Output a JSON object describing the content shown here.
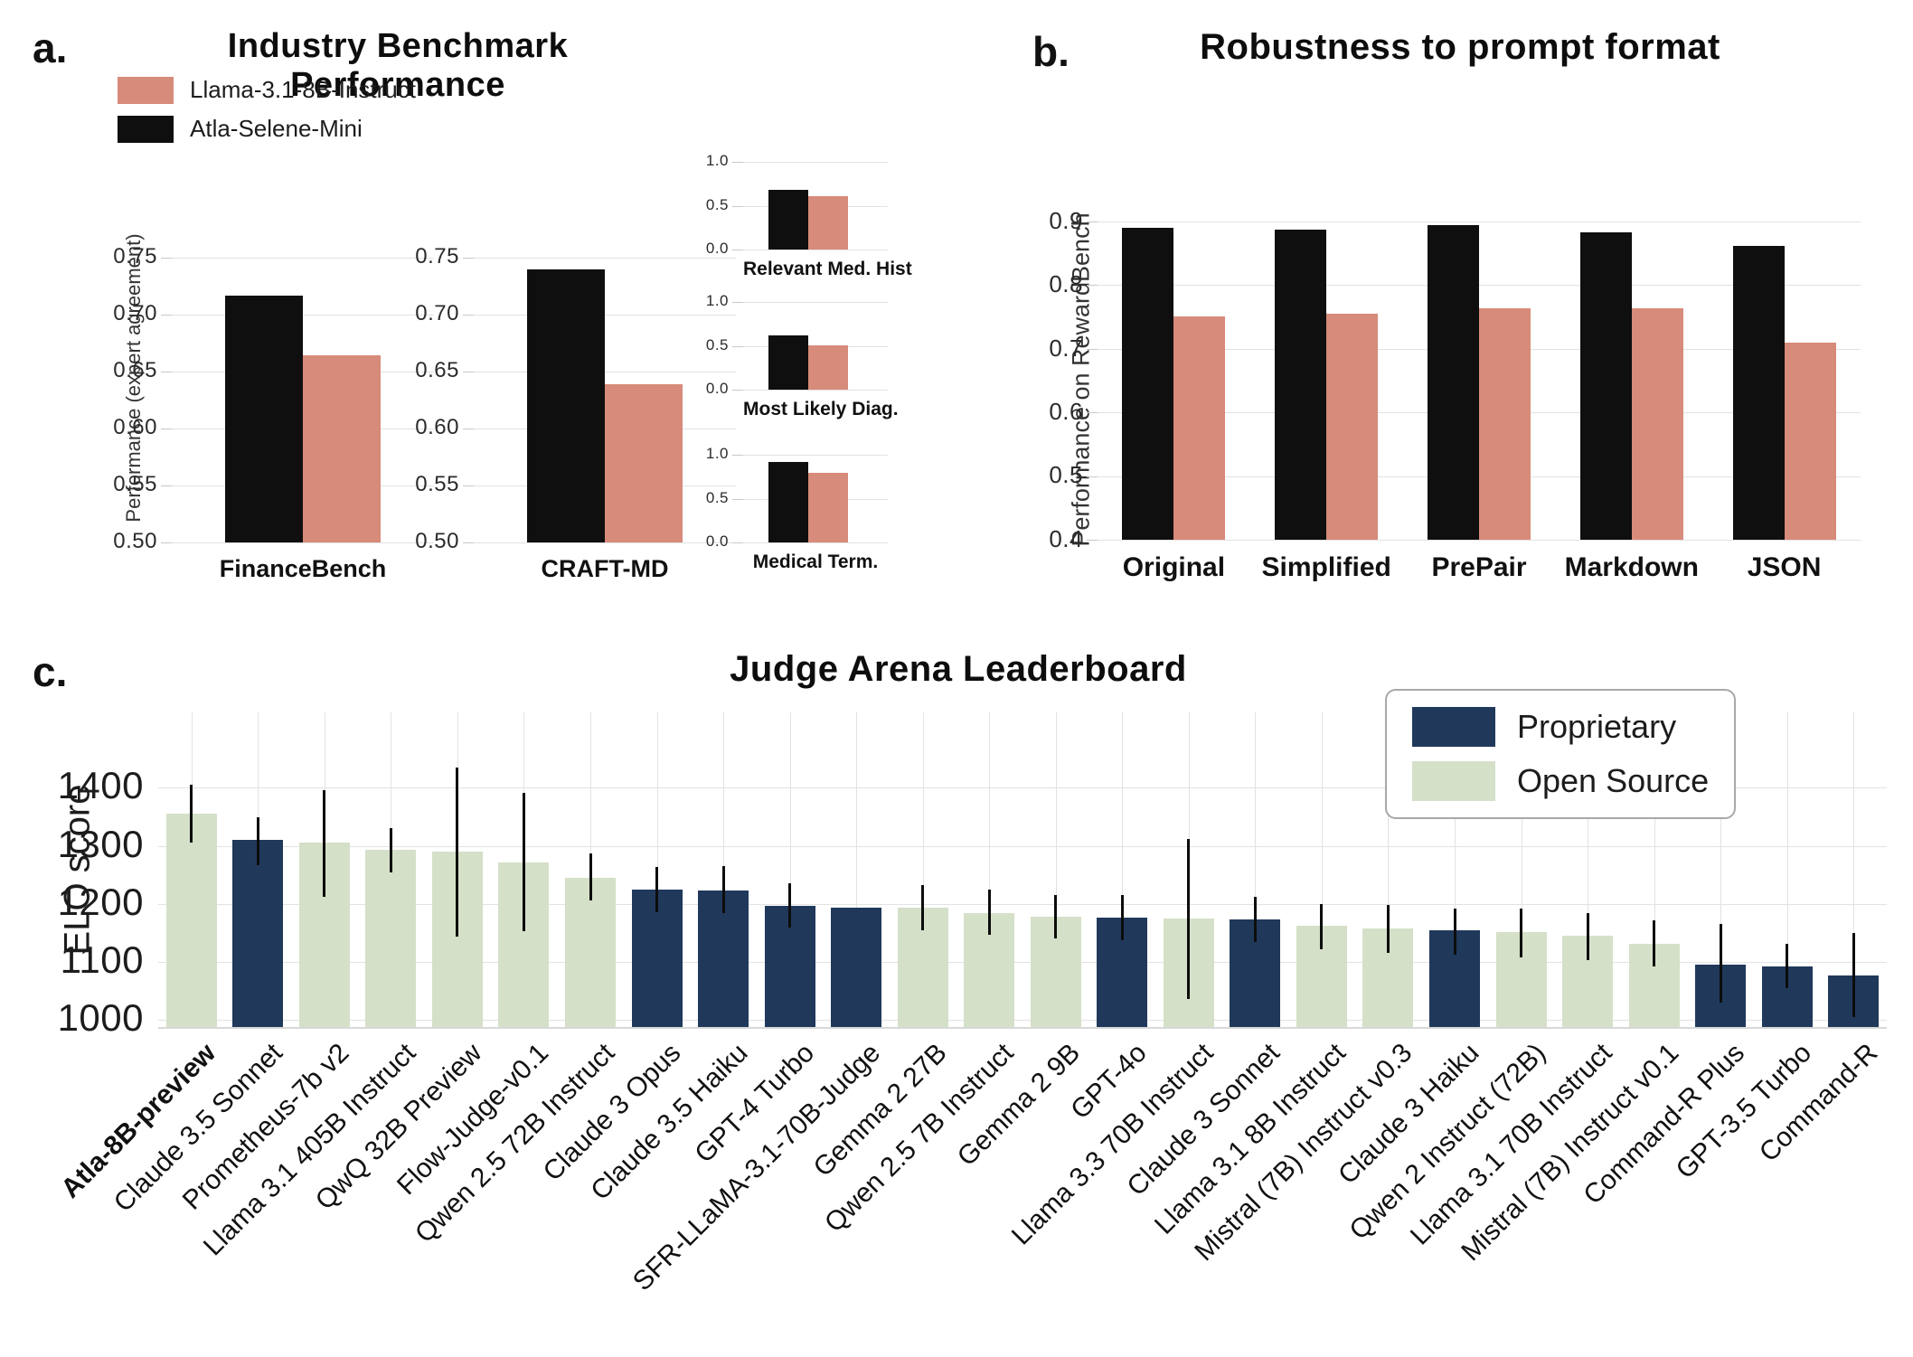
{
  "colors": {
    "black": "#0f0f0f",
    "salmon": "#d78b7a",
    "navy": "#20395b",
    "green": "#d5e0c8",
    "grid": "#e2e2e2",
    "tick": "#c9c9c9",
    "spine": "#d8d8d8"
  },
  "panel_a": {
    "label": "a.",
    "title": "Industry Benchmark Performance",
    "ylabel": "Performance (expert agreement)",
    "legend": [
      {
        "label": "Llama-3.1-8B-Instruct",
        "color": "salmon"
      },
      {
        "label": "Atla-Selene-Mini",
        "color": "black"
      }
    ]
  },
  "panel_b": {
    "label": "b.",
    "title": "Robustness to prompt format",
    "ylabel": "Performance on RewardBench"
  },
  "panel_c": {
    "label": "c.",
    "title": "Judge Arena Leaderboard",
    "ylabel": "ELO score",
    "legend": [
      {
        "label": "Proprietary",
        "color": "navy"
      },
      {
        "label": "Open Source",
        "color": "green"
      }
    ]
  },
  "chart_data": [
    {
      "id": "financebench",
      "type": "bar",
      "xlabel": "FinanceBench",
      "ylabel": "Performance (expert agreement)",
      "ylim": [
        0.5,
        0.75
      ],
      "grid": true,
      "yticks": [
        {
          "v": 0.75,
          "label": "0.75"
        },
        {
          "v": 0.7,
          "label": "0.70"
        },
        {
          "v": 0.65,
          "label": "0.65"
        },
        {
          "v": 0.6,
          "label": "0.60"
        },
        {
          "v": 0.55,
          "label": "0.55"
        },
        {
          "v": 0.5,
          "label": "0.50"
        }
      ],
      "series": [
        {
          "name": "Atla-Selene-Mini",
          "color": "black",
          "value": 0.717
        },
        {
          "name": "Llama-3.1-8B-Instruct",
          "color": "salmon",
          "value": 0.664
        }
      ]
    },
    {
      "id": "craft-md",
      "type": "bar",
      "xlabel": "CRAFT-MD",
      "ylim": [
        0.5,
        0.75
      ],
      "grid": true,
      "yticks": [
        {
          "v": 0.75,
          "label": "0.75"
        },
        {
          "v": 0.7,
          "label": "0.70"
        },
        {
          "v": 0.65,
          "label": "0.65"
        },
        {
          "v": 0.6,
          "label": "0.60"
        },
        {
          "v": 0.55,
          "label": "0.55"
        },
        {
          "v": 0.5,
          "label": "0.50"
        }
      ],
      "series": [
        {
          "name": "Atla-Selene-Mini",
          "color": "black",
          "value": 0.74
        },
        {
          "name": "Llama-3.1-8B-Instruct",
          "color": "salmon",
          "value": 0.639
        }
      ]
    },
    {
      "id": "relevant-med-hist",
      "type": "bar",
      "xlabel": "Relevant Med. Hist",
      "ylim": [
        0.0,
        1.0
      ],
      "grid": true,
      "yticks": [
        {
          "v": 1.0,
          "label": "1.0"
        },
        {
          "v": 0.5,
          "label": "0.5"
        },
        {
          "v": 0.0,
          "label": "0.0"
        }
      ],
      "series": [
        {
          "name": "Atla-Selene-Mini",
          "color": "black",
          "value": 0.68
        },
        {
          "name": "Llama-3.1-8B-Instruct",
          "color": "salmon",
          "value": 0.61
        }
      ]
    },
    {
      "id": "most-likely-diag",
      "type": "bar",
      "xlabel": "Most Likely Diag.",
      "ylim": [
        0.0,
        1.0
      ],
      "grid": true,
      "yticks": [
        {
          "v": 1.0,
          "label": "1.0"
        },
        {
          "v": 0.5,
          "label": "0.5"
        },
        {
          "v": 0.0,
          "label": "0.0"
        }
      ],
      "series": [
        {
          "name": "Atla-Selene-Mini",
          "color": "black",
          "value": 0.62
        },
        {
          "name": "Llama-3.1-8B-Instruct",
          "color": "salmon",
          "value": 0.51
        }
      ]
    },
    {
      "id": "medical-term",
      "type": "bar",
      "xlabel": "Medical Term.",
      "ylim": [
        0.0,
        1.0
      ],
      "grid": true,
      "yticks": [
        {
          "v": 1.0,
          "label": "1.0"
        },
        {
          "v": 0.5,
          "label": "0.5"
        },
        {
          "v": 0.0,
          "label": "0.0"
        }
      ],
      "series": [
        {
          "name": "Atla-Selene-Mini",
          "color": "black",
          "value": 0.92
        },
        {
          "name": "Llama-3.1-8B-Instruct",
          "color": "salmon",
          "value": 0.79
        }
      ]
    },
    {
      "id": "robustness",
      "type": "grouped-bar",
      "title": "Robustness to prompt format",
      "ylabel": "Performance on RewardBench",
      "categories": [
        "Original",
        "Simplified",
        "PrePair",
        "Markdown",
        "JSON"
      ],
      "ylim": [
        0.4,
        0.9
      ],
      "grid": true,
      "yticks": [
        {
          "v": 0.9,
          "label": "0.9"
        },
        {
          "v": 0.8,
          "label": "0.8"
        },
        {
          "v": 0.7,
          "label": "0.7"
        },
        {
          "v": 0.6,
          "label": "0.6"
        },
        {
          "v": 0.5,
          "label": "0.5"
        },
        {
          "v": 0.4,
          "label": "0.4"
        }
      ],
      "series": [
        {
          "name": "Atla-Selene-Mini",
          "color": "black",
          "values": [
            0.89,
            0.887,
            0.895,
            0.883,
            0.862
          ]
        },
        {
          "name": "Llama-3.1-8B-Instruct",
          "color": "salmon",
          "values": [
            0.751,
            0.755,
            0.763,
            0.764,
            0.71
          ]
        }
      ]
    },
    {
      "id": "judge-arena",
      "type": "bar-error",
      "title": "Judge Arena Leaderboard",
      "ylabel": "ELO score",
      "ylim": [
        988,
        1530
      ],
      "grid": true,
      "yticks": [
        {
          "v": 1400,
          "label": "1400"
        },
        {
          "v": 1300,
          "label": "1300"
        },
        {
          "v": 1200,
          "label": "1200"
        },
        {
          "v": 1100,
          "label": "1100"
        },
        {
          "v": 1000,
          "label": "1000"
        }
      ],
      "legend_position": "upper right",
      "group_colors": {
        "proprietary": "navy",
        "open": "green"
      },
      "bars": [
        {
          "label": "Atla-8B-preview",
          "group": "open",
          "bold": true,
          "elo": 1356,
          "err": [
            1305,
            1406
          ]
        },
        {
          "label": "Claude 3.5 Sonnet",
          "group": "proprietary",
          "elo": 1310,
          "err": [
            1267,
            1350
          ]
        },
        {
          "label": "Prometheus-7b v2",
          "group": "open",
          "elo": 1305,
          "err": [
            1213,
            1396
          ]
        },
        {
          "label": "Llama 3.1 405B Instruct",
          "group": "open",
          "elo": 1294,
          "err": [
            1254,
            1330
          ]
        },
        {
          "label": "QwQ 32B Preview",
          "group": "open",
          "elo": 1290,
          "err": [
            1144,
            1435
          ]
        },
        {
          "label": "Flow-Judge-v0.1",
          "group": "open",
          "elo": 1272,
          "err": [
            1153,
            1391
          ]
        },
        {
          "label": "Qwen 2.5 72B Instruct",
          "group": "open",
          "elo": 1245,
          "err": [
            1206,
            1287
          ]
        },
        {
          "label": "Claude 3 Opus",
          "group": "proprietary",
          "elo": 1224,
          "err": [
            1186,
            1263
          ]
        },
        {
          "label": "Claude 3.5 Haiku",
          "group": "proprietary",
          "elo": 1223,
          "err": [
            1185,
            1265
          ]
        },
        {
          "label": "GPT-4 Turbo",
          "group": "proprietary",
          "elo": 1197,
          "err": [
            1160,
            1235
          ]
        },
        {
          "label": "SFR-LLaMA-3.1-70B-Judge",
          "group": "proprietary",
          "elo": 1194,
          "err": null
        },
        {
          "label": "Gemma 2 27B",
          "group": "open",
          "elo": 1193,
          "err": [
            1155,
            1233
          ]
        },
        {
          "label": "Qwen 2.5 7B Instruct",
          "group": "open",
          "elo": 1184,
          "err": [
            1147,
            1224
          ]
        },
        {
          "label": "Gemma 2 9B",
          "group": "open",
          "elo": 1178,
          "err": [
            1140,
            1216
          ]
        },
        {
          "label": "GPT-4o",
          "group": "proprietary",
          "elo": 1176,
          "err": [
            1138,
            1215
          ]
        },
        {
          "label": "Llama 3.3 70B Instruct",
          "group": "open",
          "elo": 1175,
          "err": [
            1037,
            1312
          ]
        },
        {
          "label": "Claude 3 Sonnet",
          "group": "proprietary",
          "elo": 1174,
          "err": [
            1135,
            1213
          ]
        },
        {
          "label": "Llama 3.1 8B Instruct",
          "group": "open",
          "elo": 1163,
          "err": [
            1122,
            1200
          ]
        },
        {
          "label": "Mistral (7B) Instruct v0.3",
          "group": "open",
          "elo": 1157,
          "err": [
            1115,
            1198
          ]
        },
        {
          "label": "Claude 3 Haiku",
          "group": "proprietary",
          "elo": 1155,
          "err": [
            1112,
            1192
          ]
        },
        {
          "label": "Qwen 2 Instruct (72B)",
          "group": "open",
          "elo": 1152,
          "err": [
            1108,
            1192
          ]
        },
        {
          "label": "Llama 3.1 70B Instruct",
          "group": "open",
          "elo": 1145,
          "err": [
            1104,
            1184
          ]
        },
        {
          "label": "Mistral (7B) Instruct v0.1",
          "group": "open",
          "elo": 1132,
          "err": [
            1092,
            1172
          ]
        },
        {
          "label": "Command-R Plus",
          "group": "proprietary",
          "elo": 1096,
          "err": [
            1030,
            1165
          ]
        },
        {
          "label": "GPT-3.5 Turbo",
          "group": "proprietary",
          "elo": 1093,
          "err": [
            1055,
            1132
          ]
        },
        {
          "label": "Command-R",
          "group": "proprietary",
          "elo": 1076,
          "err": [
            1005,
            1150
          ]
        }
      ]
    }
  ]
}
